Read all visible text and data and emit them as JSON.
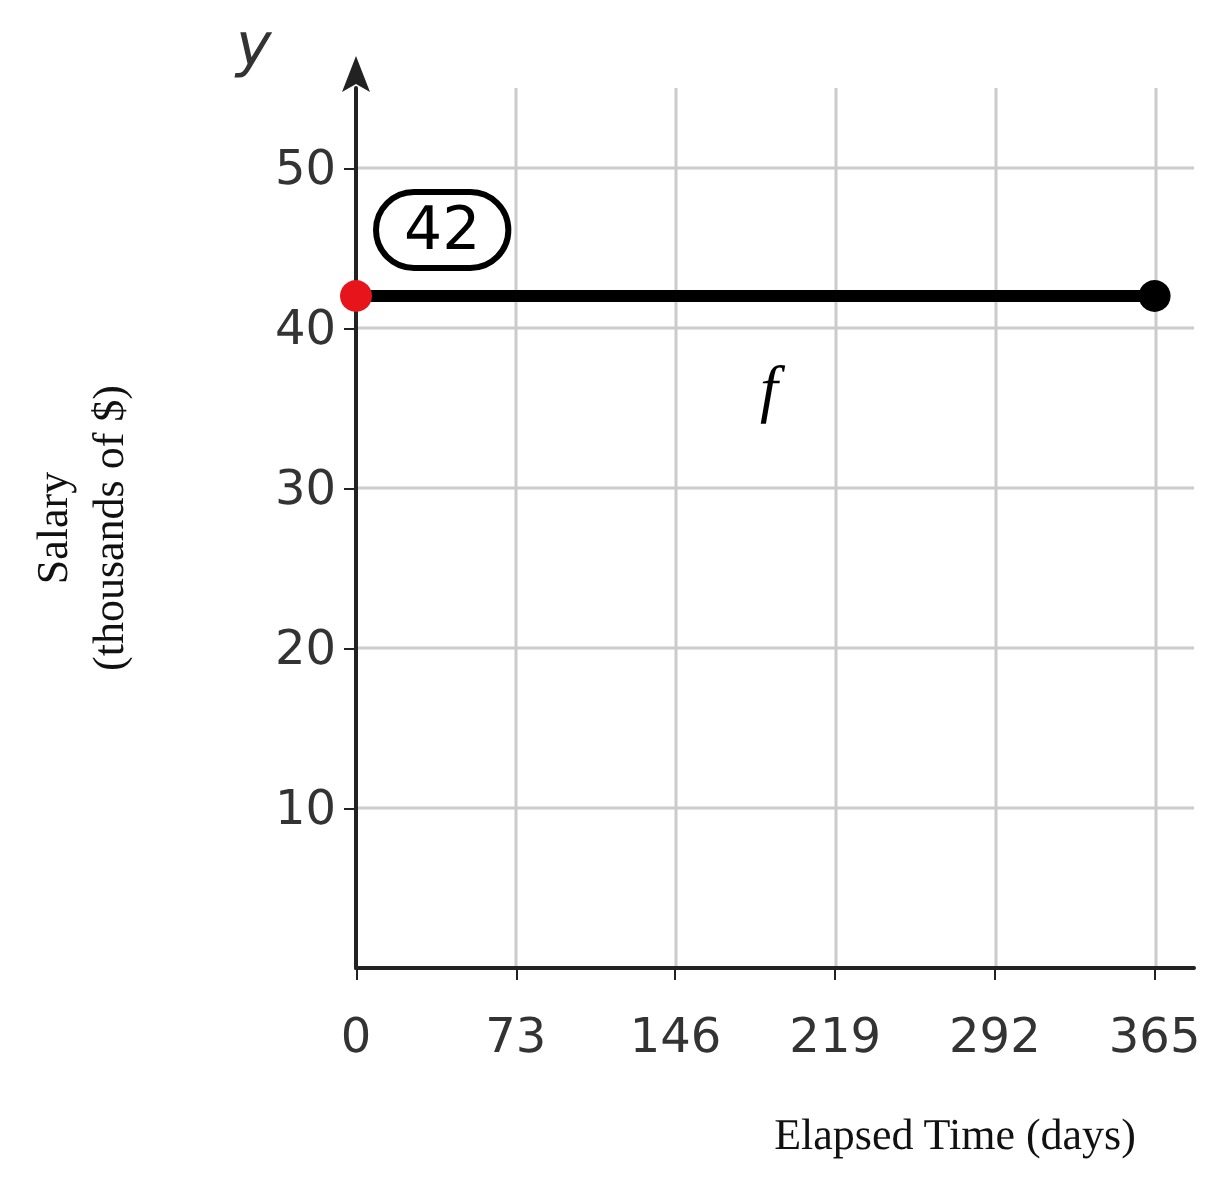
{
  "chart_data": {
    "type": "line",
    "xlabel": "Elapsed Time (days)",
    "ylabel": "Salary\n(thousands of $)",
    "x": [
      0,
      365
    ],
    "xlim": [
      0,
      383
    ],
    "xticks": [
      0,
      73,
      146,
      219,
      292,
      365
    ],
    "ylim": [
      0,
      55
    ],
    "yticks": [
      10,
      20,
      30,
      40,
      50
    ],
    "series": [
      {
        "color": "#000000",
        "colors": [
          "#e8141b",
          "#000000"
        ],
        "values": [
          42,
          42
        ]
      }
    ],
    "marker": "circle",
    "line_style": "solid",
    "grid": true,
    "annotations": [
      "y",
      "f",
      {
        "text": "42",
        "x": 0,
        "y": 42
      }
    ]
  }
}
